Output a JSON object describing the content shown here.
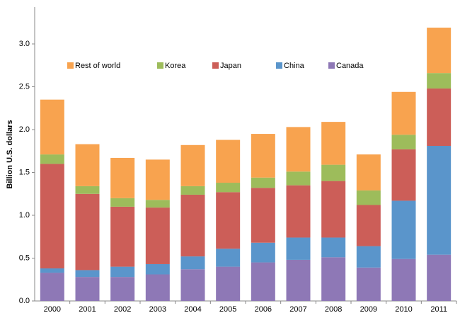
{
  "chart_data": {
    "type": "stacked_bar",
    "y_axis_label": "Billion U.S. dollars",
    "categories": [
      "2000",
      "2001",
      "2002",
      "2003",
      "2004",
      "2005",
      "2006",
      "2007",
      "2008",
      "2009",
      "2010",
      "2011"
    ],
    "series": [
      {
        "name": "Canada",
        "color": "#8e78b6",
        "values": [
          0.33,
          0.28,
          0.28,
          0.31,
          0.37,
          0.4,
          0.45,
          0.48,
          0.51,
          0.39,
          0.49,
          0.54
        ]
      },
      {
        "name": "China",
        "color": "#5a95cb",
        "values": [
          0.05,
          0.08,
          0.12,
          0.12,
          0.15,
          0.21,
          0.23,
          0.26,
          0.23,
          0.25,
          0.68,
          1.27
        ]
      },
      {
        "name": "Japan",
        "color": "#cc5e58",
        "values": [
          1.22,
          0.89,
          0.7,
          0.66,
          0.72,
          0.66,
          0.64,
          0.61,
          0.66,
          0.48,
          0.6,
          0.67
        ]
      },
      {
        "name": "Korea",
        "color": "#9dbc5b",
        "values": [
          0.11,
          0.09,
          0.1,
          0.09,
          0.1,
          0.11,
          0.12,
          0.16,
          0.19,
          0.17,
          0.17,
          0.18
        ]
      },
      {
        "name": "Rest of world",
        "color": "#f8a34f",
        "values": [
          0.64,
          0.49,
          0.47,
          0.47,
          0.48,
          0.5,
          0.51,
          0.52,
          0.5,
          0.42,
          0.5,
          0.53
        ]
      }
    ],
    "ylim": [
      0,
      3.43
    ],
    "yticks": [
      {
        "value": 0,
        "label": "0.0"
      },
      0.5,
      {
        "value": 1,
        "label": "1.0"
      },
      1.5,
      {
        "value": 2,
        "label": "2.0"
      },
      2.5,
      {
        "value": 3,
        "label": "3.0"
      }
    ],
    "grid": false
  }
}
